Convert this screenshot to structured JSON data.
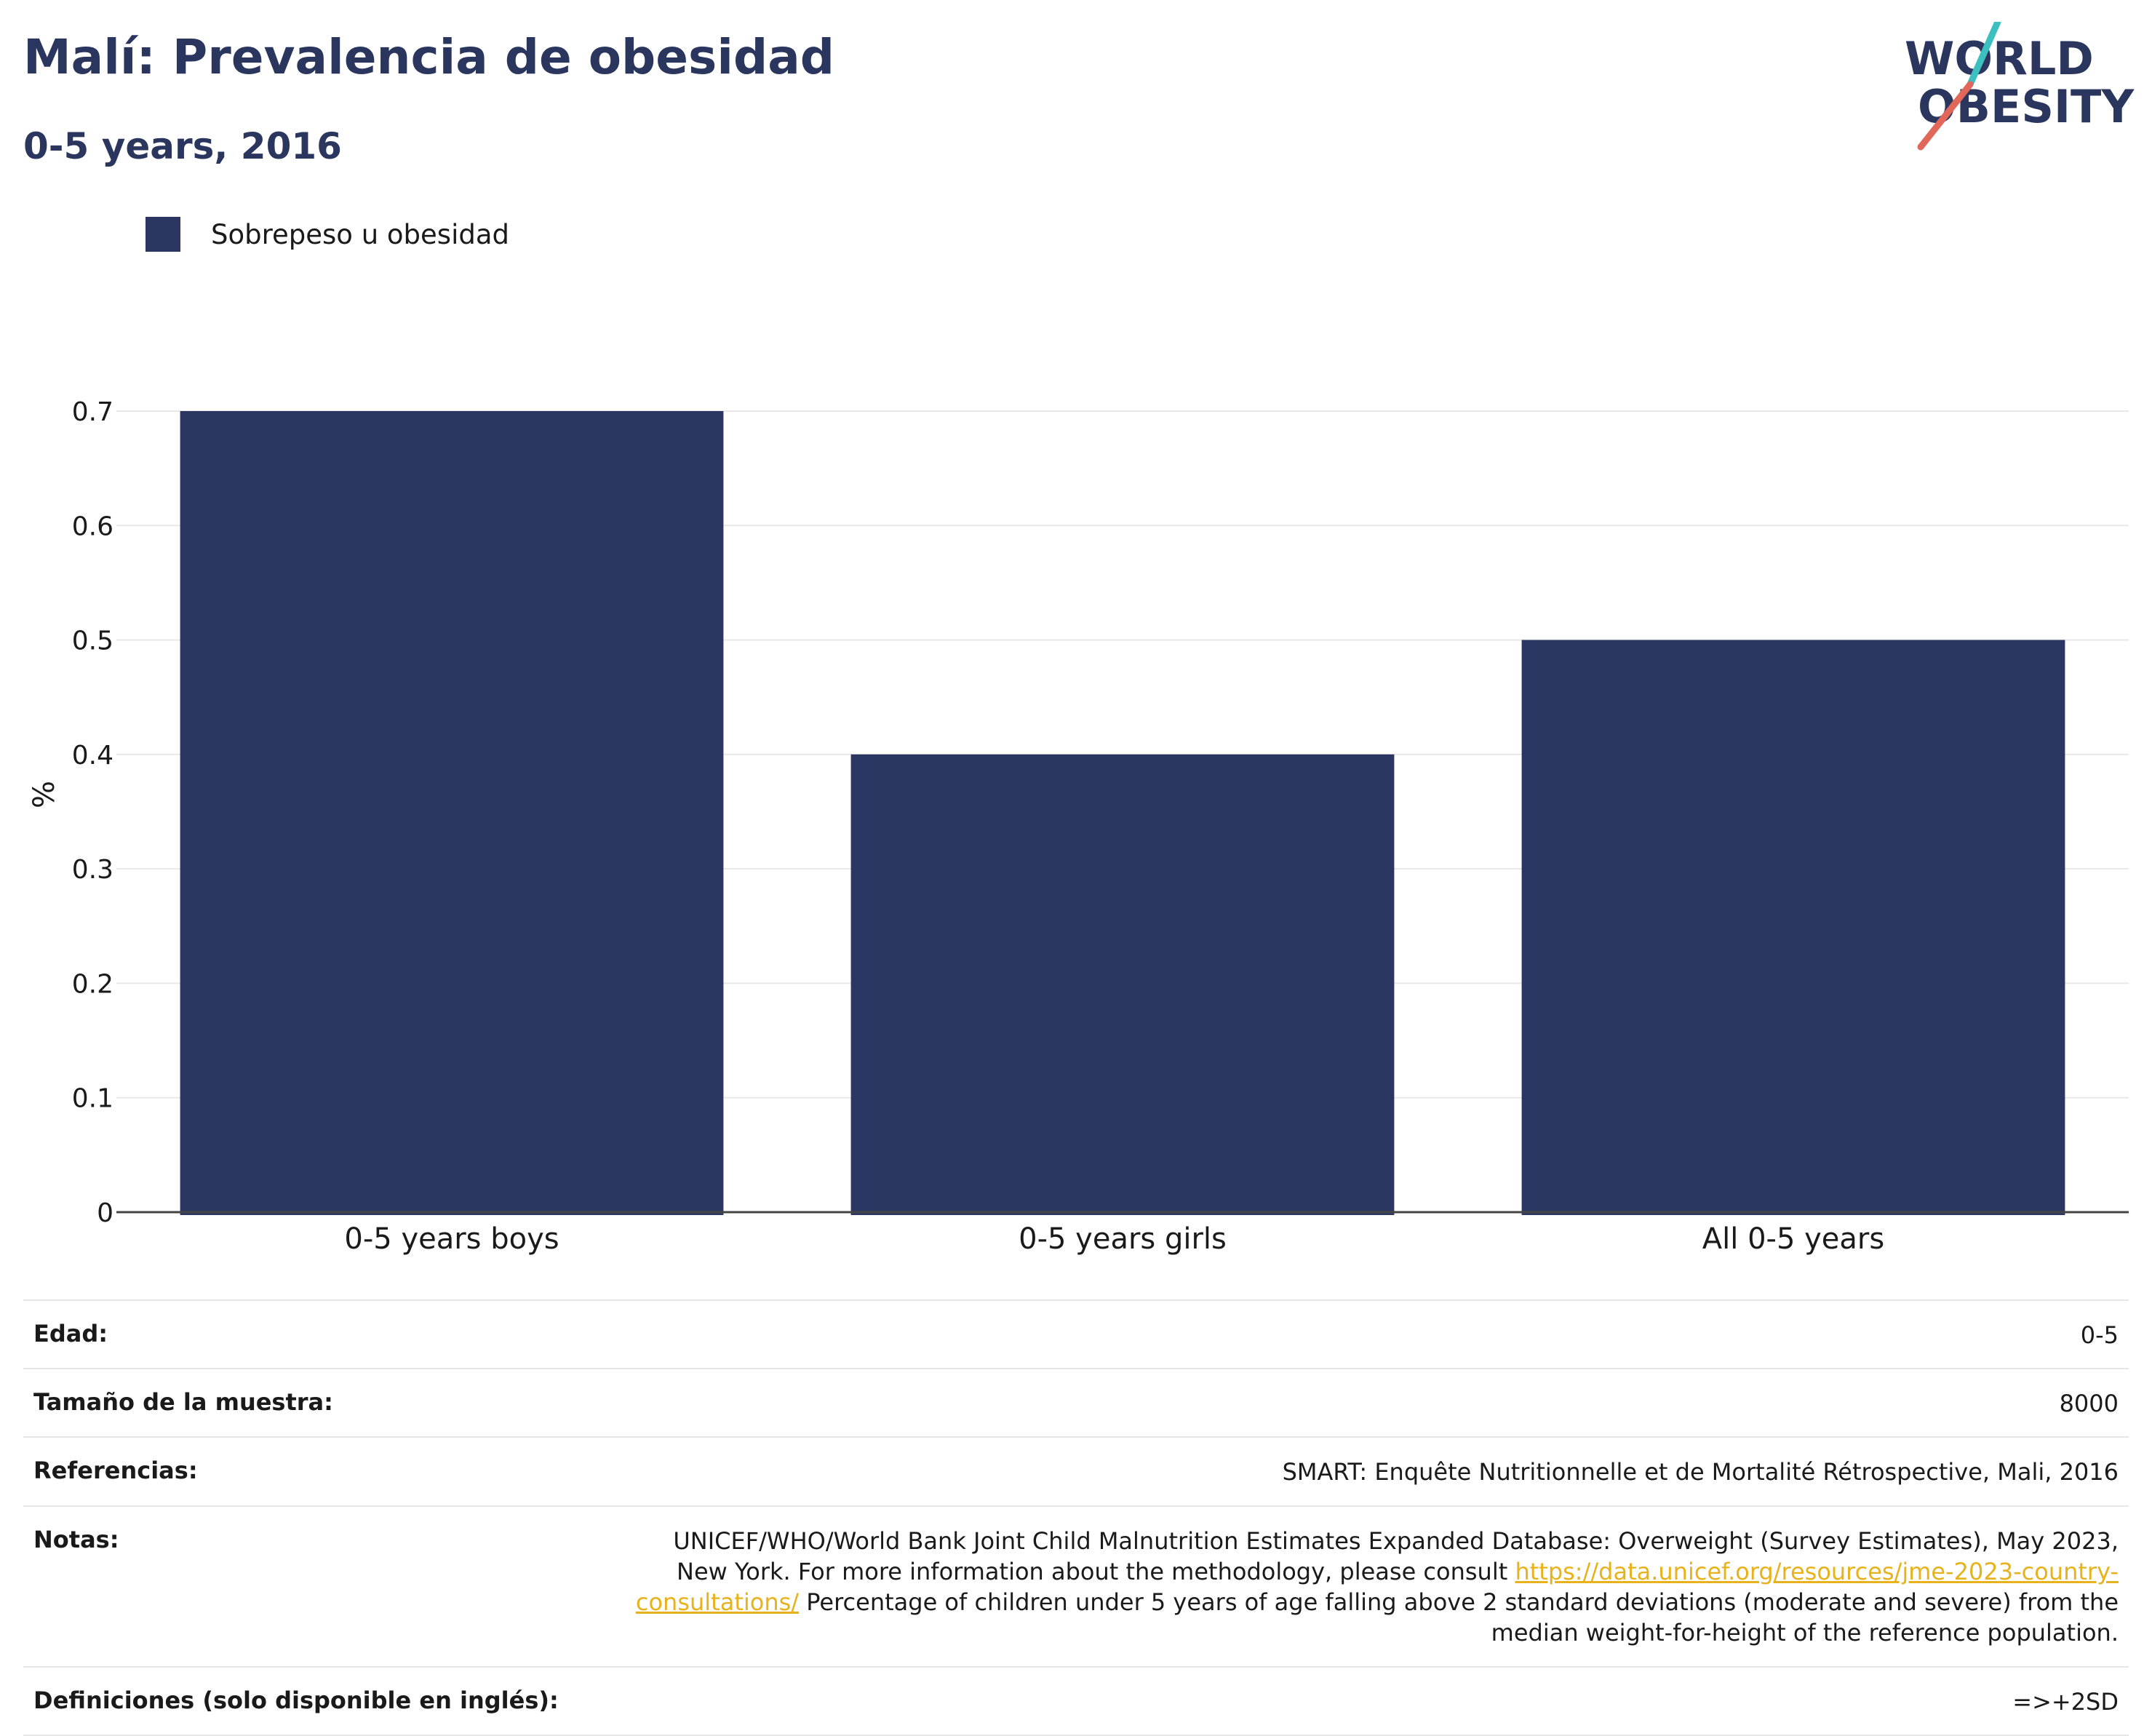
{
  "header": {
    "title": "Malí: Prevalencia de obesidad",
    "subtitle": "0-5 years, 2016"
  },
  "logo": {
    "line1": "WORLD",
    "line2": "OBESITY",
    "colors": {
      "text": "#2b365f",
      "slash_top": "#3bbfbf",
      "slash_bottom": "#e0675a"
    }
  },
  "legend": {
    "items": [
      {
        "label": "Sobrepeso u obesidad",
        "color": "#2b3762"
      }
    ]
  },
  "chart_data": {
    "type": "bar",
    "categories": [
      "0-5 years boys",
      "0-5 years girls",
      "All 0-5 years"
    ],
    "series": [
      {
        "name": "Sobrepeso u obesidad",
        "values": [
          0.7,
          0.4,
          0.5
        ],
        "color": "#2b3762"
      }
    ],
    "ylabel": "%",
    "xlabel": "",
    "ylim": [
      0,
      0.7
    ],
    "yticks": [
      0,
      0.1,
      0.2,
      0.3,
      0.4,
      0.5,
      0.6,
      0.7
    ],
    "ytick_labels": [
      "0",
      "0.1",
      "0.2",
      "0.3",
      "0.4",
      "0.5",
      "0.6",
      "0.7"
    ],
    "grid": true,
    "legend_position": "top-left"
  },
  "info": {
    "age": {
      "label": "Edad:",
      "value": "0-5"
    },
    "sample": {
      "label": "Tamaño de la muestra:",
      "value": "8000"
    },
    "references": {
      "label": "Referencias:",
      "value": "SMART: Enquête Nutritionnelle et de Mortalité Rétrospective, Mali, 2016"
    },
    "notes": {
      "label": "Notas:",
      "text_before": "UNICEF/WHO/World Bank Joint Child Malnutrition Estimates Expanded Database: Overweight (Survey Estimates), May 2023, New York. For more information about the methodology, please consult ",
      "link": "https://data.unicef.org/resources/jme-2023-country-consultations/",
      "text_after": " Percentage of children under 5 years of age falling above 2 standard deviations (moderate and severe) from the median weight-for-height of the reference population."
    },
    "definitions": {
      "label": "Definiciones (solo disponible en inglés):",
      "value": "=>+2SD"
    }
  }
}
